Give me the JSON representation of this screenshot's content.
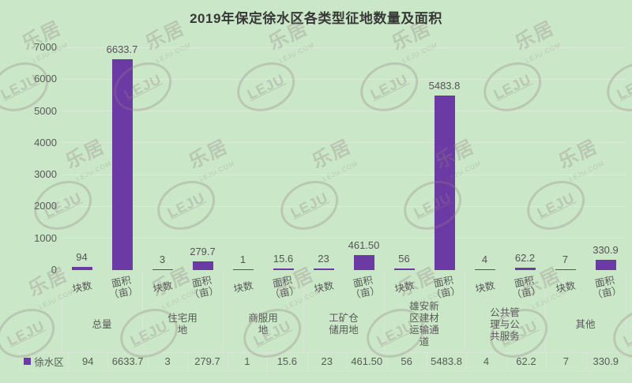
{
  "title": "2019年保定徐水区各类型征地数量及面积",
  "colors": {
    "background": "#cae7c7",
    "bar": "#6b3aa4",
    "text": "#595959",
    "title_text": "#383838",
    "gridline": "#dceada",
    "table_line": "#d6e7d3",
    "watermark": "rgba(148,126,133,0.30)"
  },
  "watermark": {
    "logo_text": "LEJU",
    "brand_text": "乐居",
    "domain_text": "LEJU.COM"
  },
  "chart_data": {
    "type": "bar",
    "title": "2019年保定徐水区各类型征地数量及面积",
    "series_name": "徐水区",
    "legend_position": "bottom-table",
    "grid": true,
    "ylim": [
      0,
      7000
    ],
    "y_ticks": [
      0,
      1000,
      2000,
      3000,
      4000,
      5000,
      6000,
      7000
    ],
    "sub_columns": [
      "块数",
      "面积（亩）"
    ],
    "categories": [
      "总量",
      "住宅用地",
      "商服用地",
      "工矿仓储用地",
      "雄安新区建材运输通道",
      "公共管理与公共服务",
      "其他"
    ],
    "groups": [
      {
        "category": "总量",
        "count": 94,
        "count_label": "94",
        "area": 6633.7,
        "area_label": "6633.7"
      },
      {
        "category": "住宅用地",
        "count": 3,
        "count_label": "3",
        "area": 279.7,
        "area_label": "279.7"
      },
      {
        "category": "商服用地",
        "count": 1,
        "count_label": "1",
        "area": 15.6,
        "area_label": "15.6"
      },
      {
        "category": "工矿仓储用地",
        "count": 23,
        "count_label": "23",
        "area": 461.5,
        "area_label": "461.50"
      },
      {
        "category": "雄安新区建材运输通道",
        "count": 56,
        "count_label": "56",
        "area": 5483.8,
        "area_label": "5483.8"
      },
      {
        "category": "公共管理与公共服务",
        "count": 4,
        "count_label": "4",
        "area": 62.2,
        "area_label": "62.2"
      },
      {
        "category": "其他",
        "count": 7,
        "count_label": "7",
        "area": 330.9,
        "area_label": "330.9"
      }
    ]
  }
}
